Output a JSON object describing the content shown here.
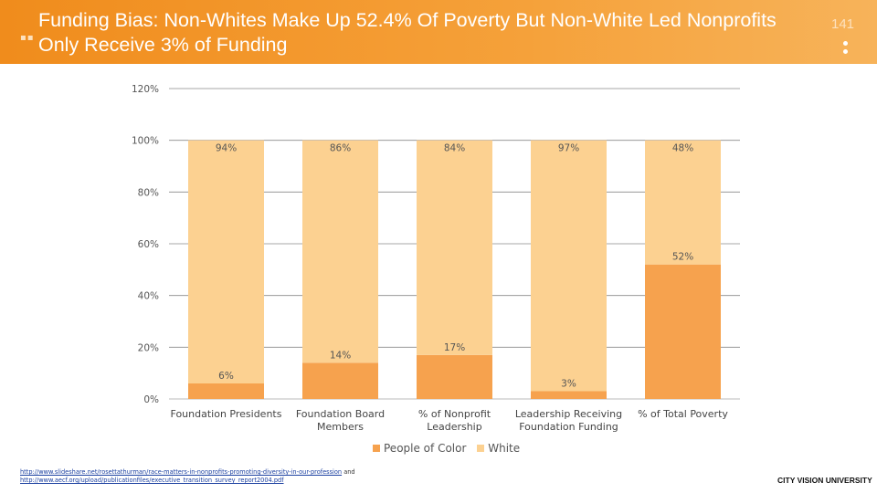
{
  "header": {
    "title": "Funding Bias: Non-Whites Make Up 52.4% Of Poverty But Non-White Led Nonprofits Only Receive 3% of Funding",
    "page_number": "141"
  },
  "chart_data": {
    "type": "bar",
    "stacked": true,
    "categories": [
      "Foundation Presidents",
      "Foundation Board Members",
      "% of Nonprofit Leadership",
      "Leadership Receiving Foundation Funding",
      "% of Total Poverty"
    ],
    "category_lines": [
      [
        "Foundation Presidents"
      ],
      [
        "Foundation Board",
        "Members"
      ],
      [
        "% of Nonprofit",
        "Leadership"
      ],
      [
        "Leadership Receiving",
        "Foundation Funding"
      ],
      [
        "% of Total Poverty"
      ]
    ],
    "series": [
      {
        "name": "People of Color",
        "values": [
          6,
          14,
          17,
          3,
          52
        ],
        "labels": [
          "6%",
          "14%",
          "17%",
          "3%",
          "52%"
        ],
        "color": "#f6a24e"
      },
      {
        "name": "White",
        "values": [
          94,
          86,
          84,
          97,
          48
        ],
        "labels": [
          "94%",
          "86%",
          "84%",
          "97%",
          "48%"
        ],
        "color": "#fcd191"
      }
    ],
    "ylim": [
      0,
      120
    ],
    "yticks": [
      0,
      20,
      40,
      60,
      80,
      100,
      120
    ],
    "ytick_labels": [
      "0%",
      "20%",
      "40%",
      "60%",
      "80%",
      "100%",
      "120%"
    ],
    "grid": true,
    "legend_position": "bottom",
    "title": "",
    "xlabel": "",
    "ylabel": ""
  },
  "legend": {
    "poc_label": "People of Color",
    "white_label": "White",
    "poc_color": "#f6a24e",
    "white_color": "#fcd191"
  },
  "sources": {
    "link1": "http://www.slideshare.net/rosettathurman/race-matters-in-nonprofits-promoting-diversity-in-our-profession",
    "connector": "and",
    "link2": "http://www.aecf.org/upload/publicationfiles/executive_transition_survey_report2004.pdf"
  },
  "footer": {
    "brand": "CITY VISION UNIVERSITY"
  }
}
